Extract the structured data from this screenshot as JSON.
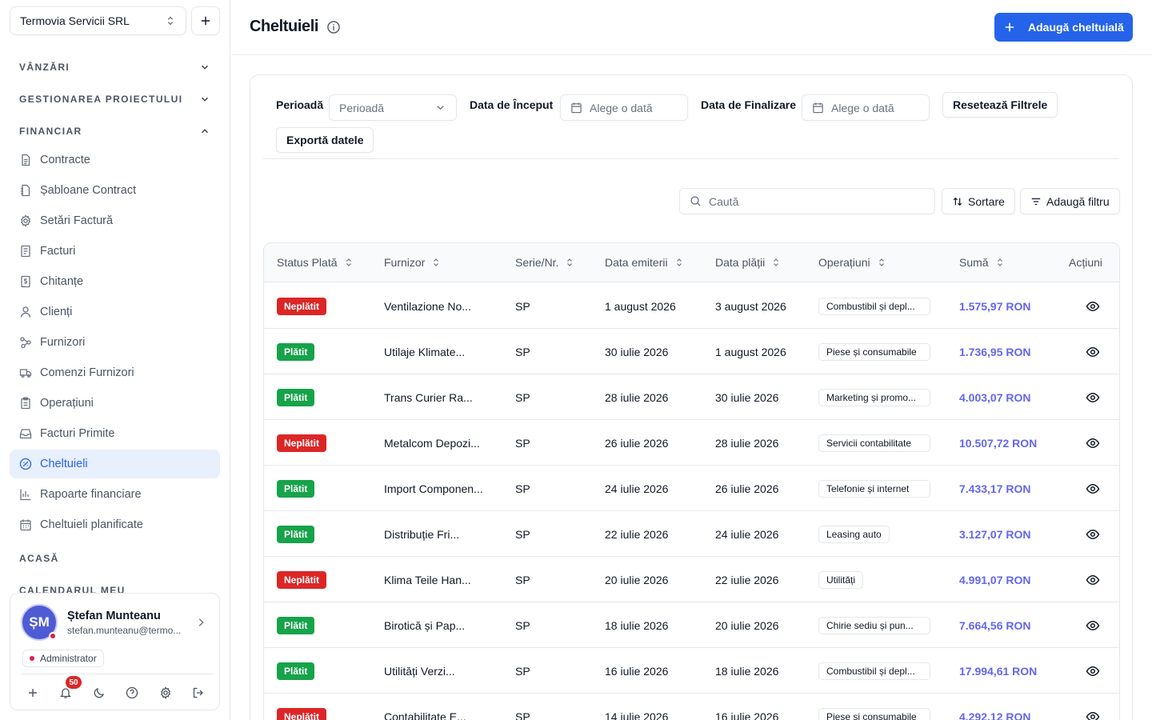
{
  "company": {
    "name": "Termovia Servicii SRL"
  },
  "sections": {
    "sales": "VÂNZĂRI",
    "project": "GESTIONAREA PROIECTULUI",
    "finance": "FINANCIAR",
    "home": "ACASĂ",
    "calendar": "CALENDARUL MEU"
  },
  "nav": [
    {
      "label": "Contracte",
      "icon": "document-icon"
    },
    {
      "label": "Șabloane Contract",
      "icon": "template-icon"
    },
    {
      "label": "Setări Factură",
      "icon": "gear-icon"
    },
    {
      "label": "Facturi",
      "icon": "invoice-icon"
    },
    {
      "label": "Chitanțe",
      "icon": "receipt-icon"
    },
    {
      "label": "Clienți",
      "icon": "user-icon"
    },
    {
      "label": "Furnizori",
      "icon": "suppliers-icon"
    },
    {
      "label": "Comenzi Furnizori",
      "icon": "truck-icon"
    },
    {
      "label": "Operațiuni",
      "icon": "clipboard-icon"
    },
    {
      "label": "Facturi Primite",
      "icon": "inbox-icon"
    },
    {
      "label": "Cheltuieli",
      "icon": "expense-icon",
      "active": true
    },
    {
      "label": "Rapoarte financiare",
      "icon": "bar-chart-icon"
    },
    {
      "label": "Cheltuieli planificate",
      "icon": "calendar-icon"
    }
  ],
  "user": {
    "initials": "ȘM",
    "name": "Ștefan Munteanu",
    "email": "stefan.munteanu@termo...",
    "role": "Administrator",
    "notifications": "50"
  },
  "header": {
    "title": "Cheltuieli",
    "add_button": "Adaugă cheltuială"
  },
  "filters": {
    "period_label": "Perioadă",
    "period_placeholder": "Perioadă",
    "start_label": "Data de Început",
    "start_placeholder": "Alege o dată",
    "end_label": "Data de Finalizare",
    "end_placeholder": "Alege o dată",
    "reset": "Resetează Filtrele",
    "export": "Exportă datele"
  },
  "toolbar": {
    "search_placeholder": "Caută",
    "sort": "Sortare",
    "add_filter": "Adaugă filtru"
  },
  "colors": {
    "accent": "#2563eb",
    "paid": "#16a34a",
    "unpaid": "#dc2626",
    "amount": "#6366f1",
    "active_bg": "#e8effd"
  },
  "table": {
    "columns": [
      "Status Plată",
      "Furnizor",
      "Serie/Nr.",
      "Data emiterii",
      "Data plății",
      "Operațiuni",
      "Sumă",
      "Acțiuni"
    ],
    "rows": [
      {
        "status": "Neplătit",
        "paid": false,
        "supplier": "Ventilazione No...",
        "series": "SP",
        "issued": "1 august 2026",
        "paid_on": "3 august 2026",
        "operation": "Combustibil și depl...",
        "amount": "1.575,97 RON"
      },
      {
        "status": "Plătit",
        "paid": true,
        "supplier": "Utilaje Klimate...",
        "series": "SP",
        "issued": "30 iulie 2026",
        "paid_on": "1 august 2026",
        "operation": "Piese și consumabile",
        "amount": "1.736,95 RON"
      },
      {
        "status": "Plătit",
        "paid": true,
        "supplier": "Trans Curier Ra...",
        "series": "SP",
        "issued": "28 iulie 2026",
        "paid_on": "30 iulie 2026",
        "operation": "Marketing și promo...",
        "amount": "4.003,07 RON"
      },
      {
        "status": "Neplătit",
        "paid": false,
        "supplier": "Metalcom Depozi...",
        "series": "SP",
        "issued": "26 iulie 2026",
        "paid_on": "28 iulie 2026",
        "operation": "Servicii contabilitate",
        "amount": "10.507,72 RON"
      },
      {
        "status": "Plătit",
        "paid": true,
        "supplier": "Import Componen...",
        "series": "SP",
        "issued": "24 iulie 2026",
        "paid_on": "26 iulie 2026",
        "operation": "Telefonie și internet",
        "amount": "7.433,17 RON"
      },
      {
        "status": "Plătit",
        "paid": true,
        "supplier": "Distribuție Fri...",
        "series": "SP",
        "issued": "22 iulie 2026",
        "paid_on": "24 iulie 2026",
        "operation": "Leasing auto",
        "amount": "3.127,07 RON"
      },
      {
        "status": "Neplătit",
        "paid": false,
        "supplier": "Klima Teile Han...",
        "series": "SP",
        "issued": "20 iulie 2026",
        "paid_on": "22 iulie 2026",
        "operation": "Utilități",
        "amount": "4.991,07 RON"
      },
      {
        "status": "Plătit",
        "paid": true,
        "supplier": "Birotică și Pap...",
        "series": "SP",
        "issued": "18 iulie 2026",
        "paid_on": "20 iulie 2026",
        "operation": "Chirie sediu și pun...",
        "amount": "7.664,56 RON"
      },
      {
        "status": "Plătit",
        "paid": true,
        "supplier": "Utilități Verzi...",
        "series": "SP",
        "issued": "16 iulie 2026",
        "paid_on": "18 iulie 2026",
        "operation": "Combustibil și depl...",
        "amount": "17.994,61 RON"
      },
      {
        "status": "Neplătit",
        "paid": false,
        "supplier": "Contabilitate E...",
        "series": "SP",
        "issued": "14 iulie 2026",
        "paid_on": "16 iulie 2026",
        "operation": "Piese și consumabile",
        "amount": "4.292,12 RON"
      }
    ]
  }
}
